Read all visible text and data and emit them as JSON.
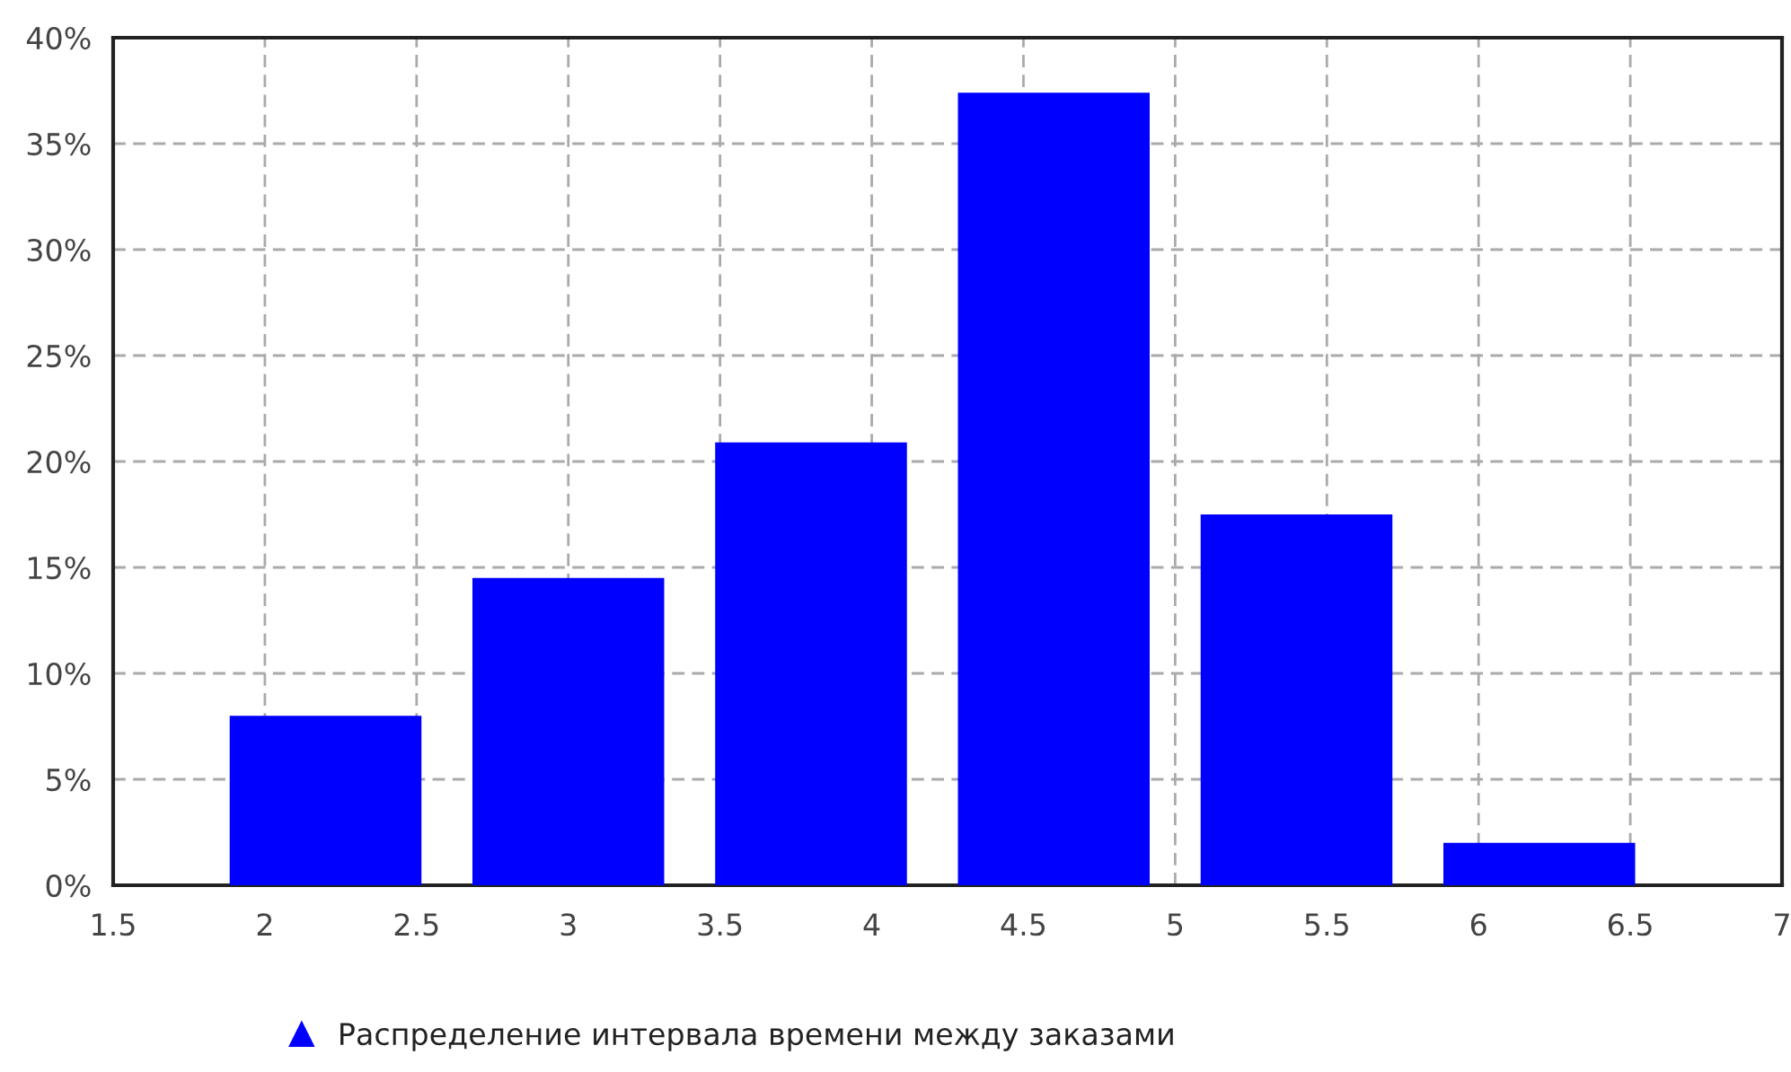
{
  "chart_data": {
    "type": "histogram",
    "bins": [
      1.8,
      2.6,
      3.4,
      4.2,
      5.0,
      5.8,
      6.6
    ],
    "series": [
      {
        "name": "Распределение интервала времени между заказами",
        "color": "#0000ff",
        "values": [
          8,
          14.5,
          20.9,
          37.4,
          17.5,
          2
        ]
      }
    ],
    "xlim": [
      1.5,
      7
    ],
    "xticks": [
      1.5,
      2,
      2.5,
      3,
      3.5,
      4,
      4.5,
      5,
      5.5,
      6,
      6.5,
      7
    ],
    "ylim": [
      0,
      40
    ],
    "yticks": [
      {
        "value": 0,
        "label": "0%"
      },
      {
        "value": 5,
        "label": "5%"
      },
      {
        "value": 10,
        "label": "10%"
      },
      {
        "value": 15,
        "label": "15%"
      },
      {
        "value": 20,
        "label": "20%"
      },
      {
        "value": 25,
        "label": "25%"
      },
      {
        "value": 30,
        "label": "30%"
      },
      {
        "value": 35,
        "label": "35%"
      },
      {
        "value": 40,
        "label": "40%"
      }
    ],
    "grid": true,
    "legend": "bottom"
  }
}
